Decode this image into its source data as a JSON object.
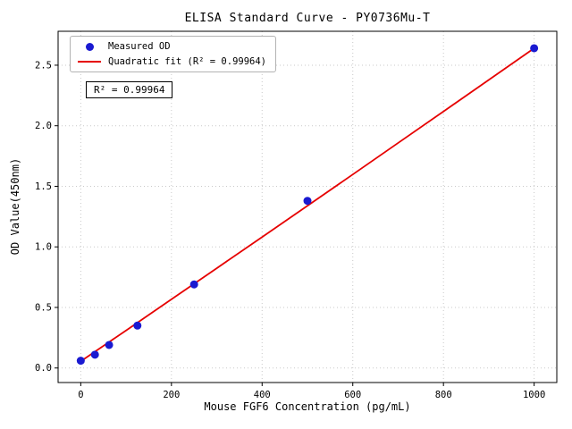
{
  "chart_data": {
    "type": "scatter",
    "title": "ELISA Standard Curve - PY0736Mu-T",
    "xlabel": "Mouse FGF6 Concentration (pg/mL)",
    "ylabel": "OD Value(450nm)",
    "xlim": [
      -50,
      1050
    ],
    "ylim": [
      -0.12,
      2.78
    ],
    "grid": true,
    "legend_position": "upper left",
    "xticks": {
      "values": [
        0,
        200,
        400,
        600,
        800,
        1000
      ],
      "labels": [
        "0",
        "200",
        "400",
        "600",
        "800",
        "1000"
      ]
    },
    "yticks": {
      "values": [
        0,
        0.5,
        1.0,
        1.5,
        2.0,
        2.5
      ],
      "labels": [
        "0.0",
        "0.5",
        "1.0",
        "1.5",
        "2.0",
        "2.5"
      ]
    },
    "series": {
      "name": "Measured OD",
      "x": [
        0,
        31.25,
        62.5,
        125,
        250,
        500,
        1000
      ],
      "od": [
        0.06,
        0.11,
        0.19,
        0.35,
        0.69,
        1.38,
        2.64
      ]
    },
    "fit": {
      "name": "Quadratic fit",
      "r_squared": 0.99964,
      "x": [
        0,
        100,
        200,
        300,
        400,
        500,
        600,
        700,
        800,
        900,
        1000
      ],
      "y": [
        0.055,
        0.31,
        0.567,
        0.824,
        1.081,
        1.339,
        1.598,
        1.858,
        2.118,
        2.379,
        2.64
      ]
    },
    "legend": {
      "measured": "Measured OD",
      "fit": "Quadratic fit (R² = 0.99964)"
    },
    "annotation": "R² = 0.99964",
    "colors": {
      "points": "#1a1ad1",
      "fit": "#e60000",
      "grid": "#c9c9c9",
      "axis": "#000000"
    }
  }
}
